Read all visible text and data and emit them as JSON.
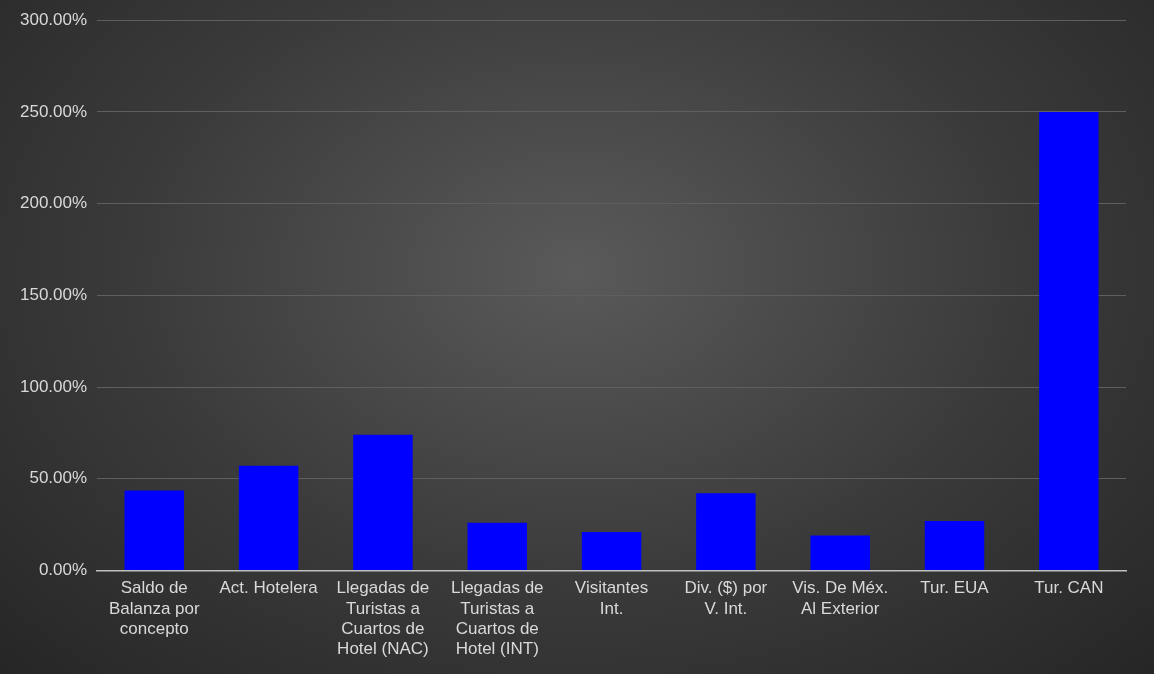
{
  "chart_data": {
    "type": "bar",
    "categories": [
      "Saldo de Balanza por concepto",
      "Act. Hotelera",
      "Llegadas de Turistas a Cuartos de Hotel (NAC)",
      "Llegadas de Turistas a Cuartos de Hotel (INT)",
      "Visitantes Int.",
      "Div. ($) por V. Int.",
      "Vis. De Méx. Al Exterior",
      "Tur. EUA",
      "Tur. CAN"
    ],
    "values": [
      43.5,
      57,
      74,
      26,
      21,
      42,
      19,
      27,
      250
    ],
    "color": "#0000ff",
    "ylim": [
      0,
      300
    ],
    "yticks": [
      {
        "value": 0,
        "label": "0.00%"
      },
      {
        "value": 50,
        "label": "50.00%"
      },
      {
        "value": 100,
        "label": "100.00%"
      },
      {
        "value": 150,
        "label": "150.00%"
      },
      {
        "value": 200,
        "label": "200.00%"
      },
      {
        "value": 250,
        "label": "250.00%"
      },
      {
        "value": 300,
        "label": "300.00%"
      }
    ],
    "grid": "y",
    "legend": false
  }
}
